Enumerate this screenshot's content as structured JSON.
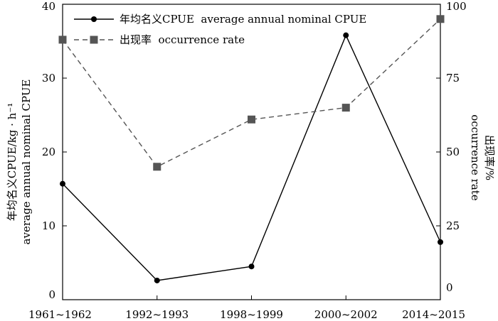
{
  "chart_data": {
    "type": "line",
    "categories": [
      "1961~1962",
      "1992~1993",
      "1998~1999",
      "2000~2002",
      "2014~2015"
    ],
    "series": [
      {
        "name": "年均名义CPUE  average annual nominal CPUE",
        "axis": "left",
        "values": [
          15.7,
          2.6,
          4.5,
          35.8,
          7.8
        ],
        "color": "#000000",
        "line_style": "solid",
        "marker": "circle"
      },
      {
        "name": "出现率  occurrence rate",
        "axis": "right",
        "values": [
          88,
          45,
          61,
          65,
          95
        ],
        "color": "#555555",
        "line_style": "dashed",
        "marker": "square"
      }
    ],
    "y_left": {
      "label_line1": "年均名义CPUE/kg · h⁻¹",
      "label_line2": "average annual nominal CPUE",
      "ylim": [
        0,
        40
      ],
      "ticks": [
        0,
        10,
        20,
        30,
        40
      ]
    },
    "y_right": {
      "label_line1": "出现率/%",
      "label_line2": "occurrence rate",
      "ylim": [
        0,
        100
      ],
      "ticks": [
        0,
        25,
        50,
        75,
        100
      ]
    },
    "legend_placement": "top-left",
    "grid": false
  }
}
